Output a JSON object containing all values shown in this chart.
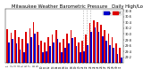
{
  "title": "Milwaukee Weather Barometric Pressure   Daily High/Low",
  "title_fontsize": 3.8,
  "bar_width": 0.42,
  "ylim": [
    29.0,
    30.85
  ],
  "yticks": [
    29.2,
    29.4,
    29.6,
    29.8,
    30.0,
    30.2,
    30.4,
    30.6,
    30.8
  ],
  "background_color": "#ffffff",
  "color_high": "#dd0000",
  "color_low": "#0000cc",
  "color_dashed": "#aaaaaa",
  "days": [
    "1",
    "2",
    "3",
    "4",
    "5",
    "6",
    "7",
    "8",
    "9",
    "10",
    "11",
    "12",
    "13",
    "14",
    "15",
    "16",
    "17",
    "18",
    "19",
    "20",
    "21",
    "22",
    "23",
    "24",
    "25",
    "26",
    "27",
    "28",
    "29",
    "30",
    "31"
  ],
  "highs": [
    30.15,
    30.05,
    30.12,
    29.88,
    29.82,
    30.08,
    30.18,
    30.42,
    30.08,
    29.78,
    29.72,
    29.88,
    29.98,
    30.12,
    29.72,
    29.82,
    30.02,
    30.12,
    29.88,
    29.72,
    29.78,
    29.98,
    30.38,
    30.48,
    30.42,
    30.32,
    30.12,
    30.02,
    29.88,
    29.68,
    29.52
  ],
  "lows": [
    29.72,
    29.82,
    29.68,
    29.48,
    29.38,
    29.68,
    29.88,
    30.02,
    29.62,
    29.38,
    29.42,
    29.58,
    29.72,
    29.82,
    29.38,
    29.52,
    29.68,
    29.85,
    29.58,
    29.38,
    29.42,
    29.62,
    30.08,
    30.22,
    30.08,
    29.92,
    29.78,
    29.62,
    29.52,
    29.32,
    29.18
  ],
  "dashed_days_idx": [
    20,
    21,
    22
  ]
}
